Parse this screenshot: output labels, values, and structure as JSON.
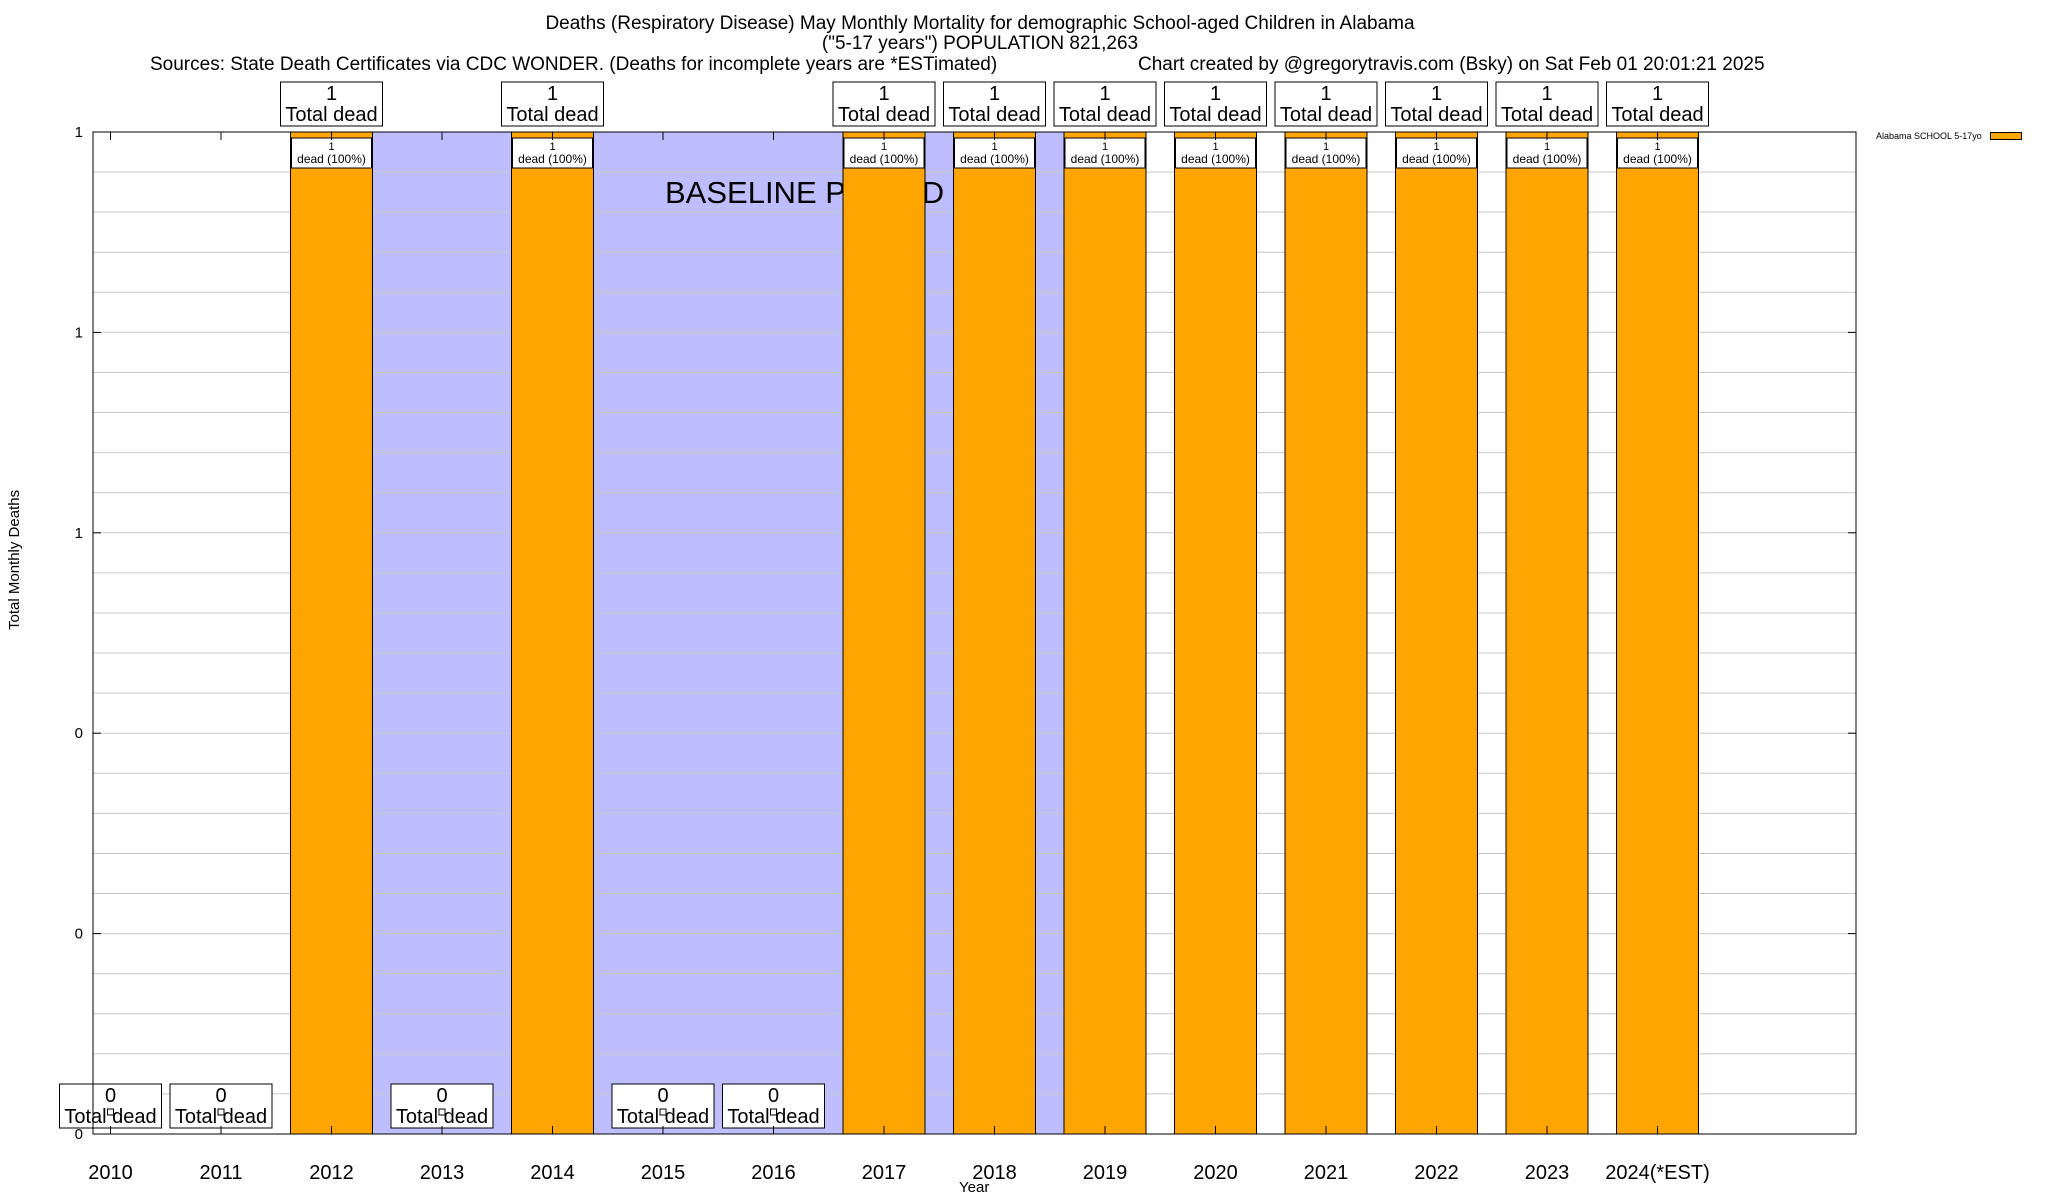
{
  "chart_data": {
    "type": "bar",
    "title": "Deaths (Respiratory Disease) May Monthly Mortality for demographic School-aged Children in Alabama",
    "subtitle": "(\"5-17 years\") POPULATION 821,263",
    "source_text": "Sources: State Death Certificates via CDC WONDER. (Deaths for incomplete years are *ESTimated)",
    "credit_text": "Chart created by @gregorytravis.com (Bsky) on Sat Feb 01 20:01:21 2025",
    "xlabel": "Year",
    "ylabel": "Total Monthly Deaths",
    "categories": [
      "2010",
      "2011",
      "2012",
      "2013",
      "2014",
      "2015",
      "2016",
      "2017",
      "2018",
      "2019",
      "2020",
      "2021",
      "2022",
      "2023",
      "2024(*EST)"
    ],
    "series": [
      {
        "name": "Alabama SCHOOL 5-17yo",
        "color": "#FFA500",
        "values": [
          0,
          0,
          1,
          0,
          1,
          0,
          0,
          1,
          1,
          1,
          1,
          1,
          1,
          1,
          1
        ]
      }
    ],
    "total_label_text": "Total dead",
    "bar_label_text": "dead (100%)",
    "ylim": [
      0,
      1
    ],
    "ytick_labels": [
      "0",
      "0",
      "0",
      "1",
      "1",
      "1"
    ],
    "grid": true,
    "baseline_label": "BASELINE PERIOD",
    "baseline_color": "#BEBEFF",
    "legend_position": "top-right"
  }
}
